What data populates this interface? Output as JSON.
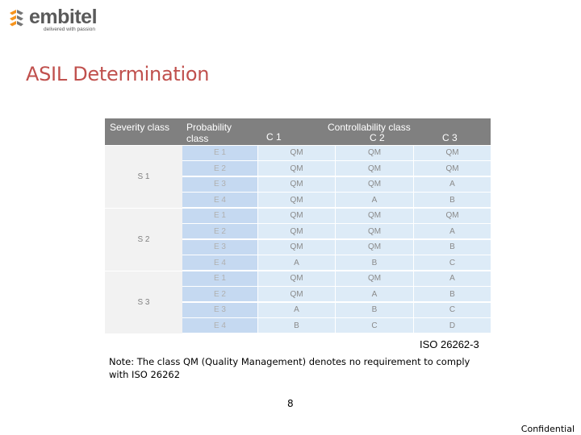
{
  "logo": {
    "word": "embitel",
    "tagline": "delivered with passion",
    "accent": "#f7941d"
  },
  "title": "ASIL Determination",
  "table": {
    "headers": {
      "severity": "Severity class",
      "probability": "Probability class",
      "controllability": "Controllability class",
      "c1": "C 1",
      "c2": "C 2",
      "c3": "C 3"
    },
    "groups": [
      {
        "severity": "S 1",
        "rows": [
          {
            "e": "E 1",
            "c1": "QM",
            "c2": "QM",
            "c3": "QM"
          },
          {
            "e": "E 2",
            "c1": "QM",
            "c2": "QM",
            "c3": "QM"
          },
          {
            "e": "E 3",
            "c1": "QM",
            "c2": "QM",
            "c3": "A"
          },
          {
            "e": "E 4",
            "c1": "QM",
            "c2": "A",
            "c3": "B"
          }
        ]
      },
      {
        "severity": "S 2",
        "rows": [
          {
            "e": "E 1",
            "c1": "QM",
            "c2": "QM",
            "c3": "QM"
          },
          {
            "e": "E 2",
            "c1": "QM",
            "c2": "QM",
            "c3": "A"
          },
          {
            "e": "E 3",
            "c1": "QM",
            "c2": "QM",
            "c3": "B"
          },
          {
            "e": "E 4",
            "c1": "A",
            "c2": "B",
            "c3": "C"
          }
        ]
      },
      {
        "severity": "S 3",
        "rows": [
          {
            "e": "E 1",
            "c1": "QM",
            "c2": "QM",
            "c3": "A"
          },
          {
            "e": "E 2",
            "c1": "QM",
            "c2": "A",
            "c3": "B"
          },
          {
            "e": "E 3",
            "c1": "A",
            "c2": "B",
            "c3": "C"
          },
          {
            "e": "E 4",
            "c1": "B",
            "c2": "C",
            "c3": "D"
          }
        ]
      }
    ]
  },
  "source": "ISO 26262-3",
  "note": "Note: The class QM (Quality Management) denotes no requirement to comply with ISO 26262",
  "page_number": "8",
  "footer": "Confidential",
  "colors": {
    "title": "#c0504d",
    "header_bg": "#808080",
    "cell_blue": "#ddebf7",
    "e_cell_blue": "#c5d9f1"
  }
}
